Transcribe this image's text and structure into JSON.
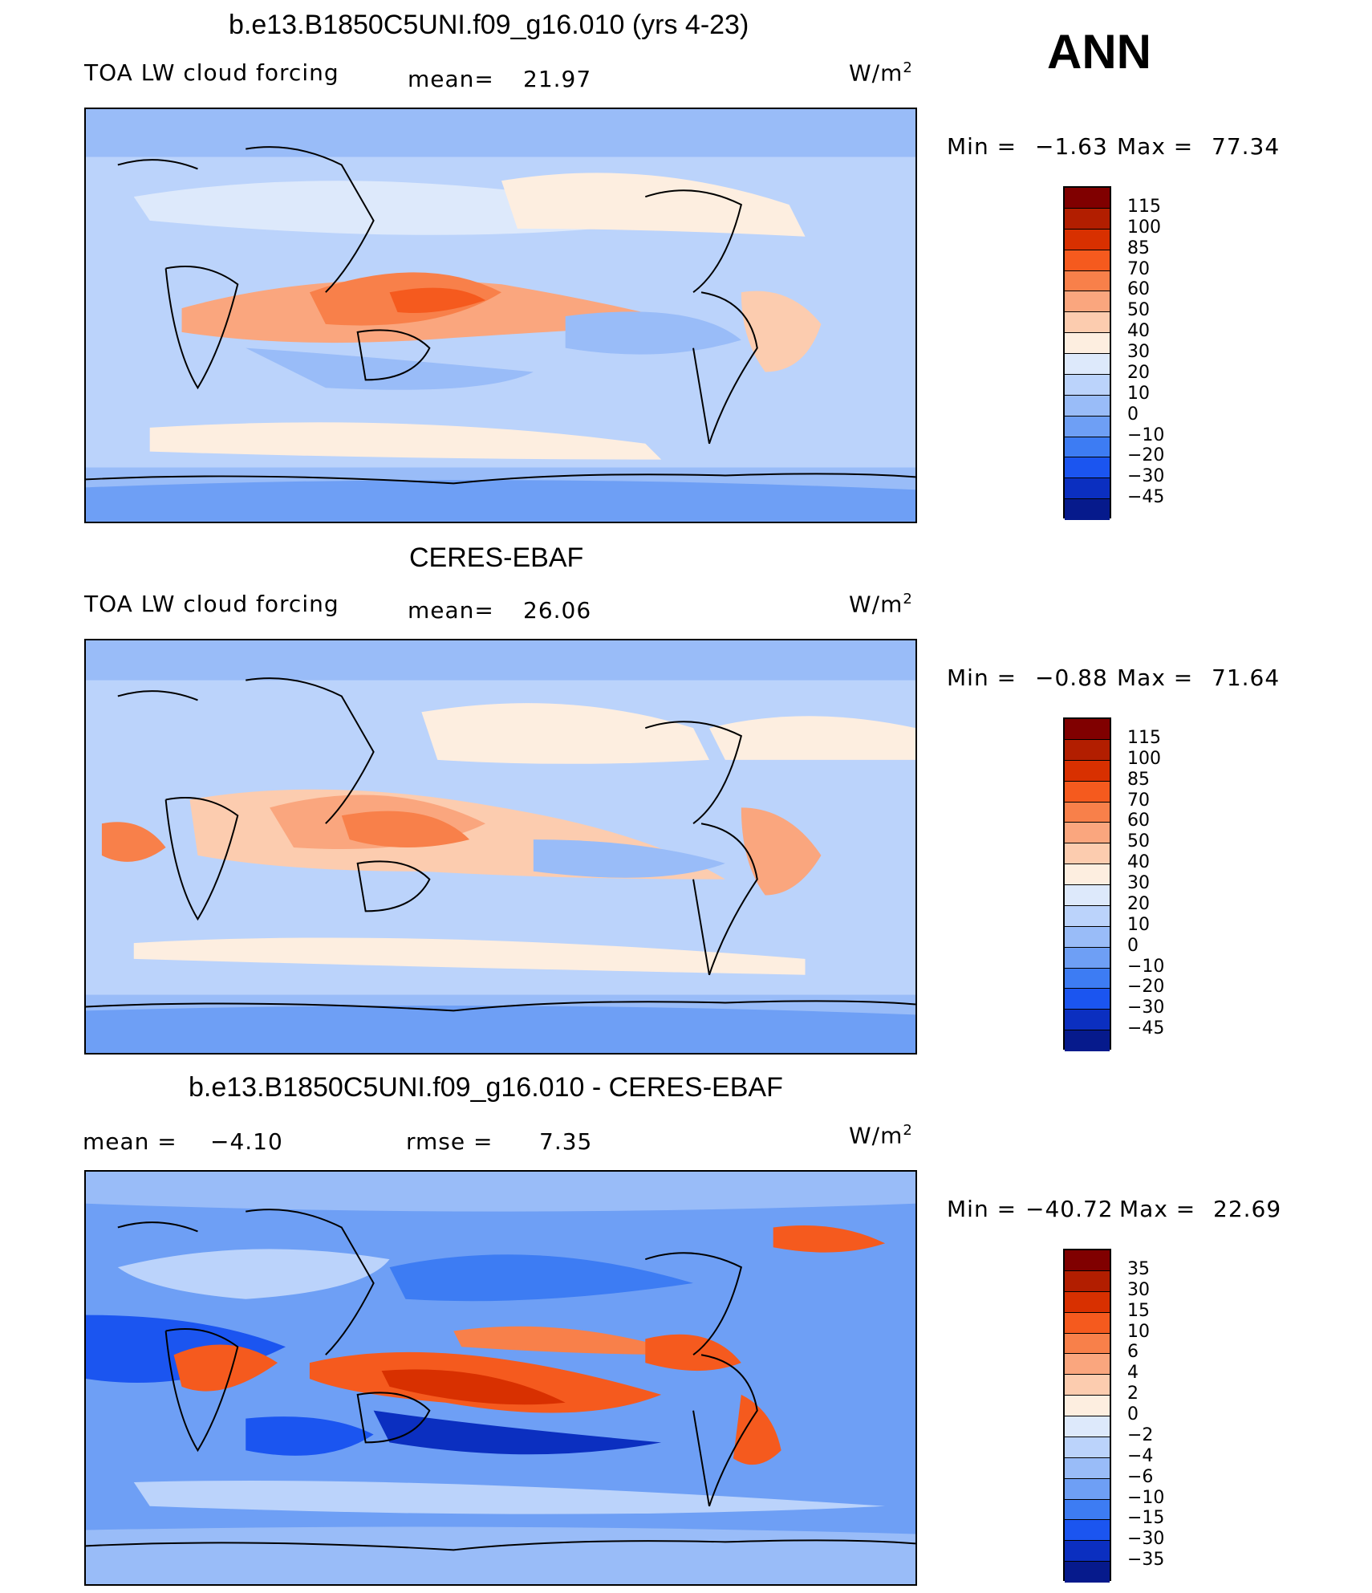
{
  "season": "ANN",
  "panels": [
    {
      "title": "b.e13.B1850C5UNI.f09_g16.010 (yrs 4-23)",
      "left_label": "TOA LW cloud forcing",
      "mean_label": "mean=",
      "mean_value": "21.97",
      "units": "W/m",
      "units_sup": "2",
      "min_label": "Min =",
      "min_value": "−1.63",
      "max_label": "Max =",
      "max_value": "77.34",
      "colorbar_labels": [
        "115",
        "100",
        "85",
        "70",
        "60",
        "50",
        "40",
        "30",
        "20",
        "10",
        "0",
        "−10",
        "−20",
        "−30",
        "−45"
      ]
    },
    {
      "title": "CERES-EBAF",
      "left_label": "TOA LW cloud forcing",
      "mean_label": "mean=",
      "mean_value": "26.06",
      "units": "W/m",
      "units_sup": "2",
      "min_label": "Min =",
      "min_value": "−0.88",
      "max_label": "Max =",
      "max_value": "71.64",
      "colorbar_labels": [
        "115",
        "100",
        "85",
        "70",
        "60",
        "50",
        "40",
        "30",
        "20",
        "10",
        "0",
        "−10",
        "−20",
        "−30",
        "−45"
      ]
    },
    {
      "title": "b.e13.B1850C5UNI.f09_g16.010 - CERES-EBAF",
      "left_label": "mean =",
      "left_value": "−4.10",
      "rmse_label": "rmse =",
      "rmse_value": "7.35",
      "units": "W/m",
      "units_sup": "2",
      "min_label": "Min =",
      "min_value": "−40.72",
      "max_label": "Max =",
      "max_value": "22.69",
      "colorbar_labels": [
        "35",
        "30",
        "15",
        "10",
        "6",
        "4",
        "2",
        "0",
        "−2",
        "−4",
        "−6",
        "−10",
        "−15",
        "−30",
        "−35"
      ]
    }
  ],
  "colors": {
    "cbar": [
      "#800000",
      "#b21e00",
      "#d83000",
      "#f55a1e",
      "#f8804a",
      "#faa67e",
      "#fcccaf",
      "#fdeee0",
      "#dde9fb",
      "#bbd3fb",
      "#99bcf8",
      "#6e9ff5",
      "#3d7cf3",
      "#1b55f0",
      "#0b2fc0",
      "#061a8c"
    ],
    "ocean_base": "#c5dbfa",
    "coast": "#000000"
  },
  "chart_data": [
    {
      "type": "heatmap",
      "title": "b.e13.B1850C5UNI.f09_g16.010 (yrs 4-23)",
      "variable": "TOA LW cloud forcing",
      "units": "W/m2",
      "mean": 21.97,
      "min": -1.63,
      "max": 77.34,
      "levels": [
        -45,
        -30,
        -20,
        -10,
        0,
        10,
        20,
        30,
        40,
        50,
        60,
        70,
        85,
        100,
        115
      ]
    },
    {
      "type": "heatmap",
      "title": "CERES-EBAF",
      "variable": "TOA LW cloud forcing",
      "units": "W/m2",
      "mean": 26.06,
      "min": -0.88,
      "max": 71.64,
      "levels": [
        -45,
        -30,
        -20,
        -10,
        0,
        10,
        20,
        30,
        40,
        50,
        60,
        70,
        85,
        100,
        115
      ]
    },
    {
      "type": "heatmap",
      "title": "b.e13.B1850C5UNI.f09_g16.010 - CERES-EBAF",
      "units": "W/m2",
      "mean": -4.1,
      "rmse": 7.35,
      "min": -40.72,
      "max": 22.69,
      "levels": [
        -35,
        -30,
        -15,
        -10,
        -6,
        -4,
        -2,
        0,
        2,
        4,
        6,
        10,
        15,
        30,
        35
      ]
    }
  ]
}
